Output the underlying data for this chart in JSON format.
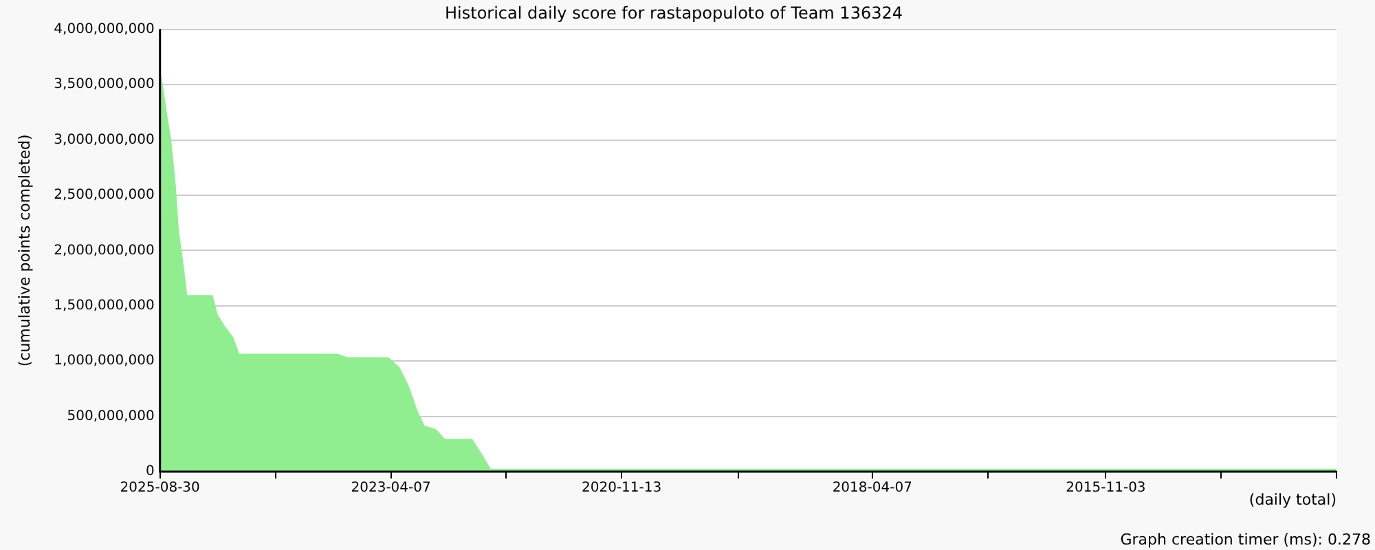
{
  "chart_data": {
    "type": "area",
    "title": "Historical daily score for rastapopuloto of Team 136324",
    "xlabel": "(daily total)",
    "ylabel": "(cumulative points completed)",
    "annotations": [
      "Graph creation timer (ms): 0.278"
    ],
    "x": [
      "2025-08-30",
      "2025-08-25",
      "2025-08-04",
      "2025-07-21",
      "2025-07-04",
      "2025-06-22",
      "2025-06-04",
      "2025-05-21",
      "2025-02-13",
      "2025-01-26",
      "2024-12-31",
      "2024-11-27",
      "2024-11-04",
      "2023-10-27",
      "2023-09-22",
      "2023-04-19",
      "2023-03-07",
      "2023-01-31",
      "2022-12-28",
      "2022-12-02",
      "2022-10-20",
      "2022-09-15",
      "2022-06-04",
      "2022-04-30",
      "2022-03-26",
      "2022-03-20",
      "2013-06-11"
    ],
    "series": [
      {
        "color": "#90ee90",
        "values": [
          3600000000,
          3550000000,
          3210000000,
          3000000000,
          2600000000,
          2180000000,
          1870000000,
          1590000000,
          1590000000,
          1420000000,
          1320000000,
          1210000000,
          1060000000,
          1060000000,
          1030000000,
          1030000000,
          940000000,
          770000000,
          540000000,
          410000000,
          380000000,
          290000000,
          290000000,
          160000000,
          20000000,
          20000000,
          20000000
        ]
      }
    ],
    "xlim": [
      "2025-08-30",
      "2013-06-11"
    ],
    "xticks": [
      {
        "value": "2025-08-30",
        "label": "2025-08-30"
      },
      {
        "value": "2024-06-18",
        "label": null
      },
      {
        "value": "2023-04-07",
        "label": "2023-04-07"
      },
      {
        "value": "2022-01-25",
        "label": null
      },
      {
        "value": "2020-11-13",
        "label": "2020-11-13"
      },
      {
        "value": "2019-08-27",
        "label": null
      },
      {
        "value": "2018-04-07",
        "label": "2018-04-07"
      },
      {
        "value": "2017-01-24",
        "label": null
      },
      {
        "value": "2015-11-03",
        "label": "2015-11-03"
      },
      {
        "value": "2014-08-22",
        "label": null
      },
      {
        "value": "2013-06-11",
        "label": null
      }
    ],
    "ylim": [
      0,
      4000000000
    ],
    "yticks": [
      0,
      {
        "value": 500000000,
        "label": "500,000,000"
      },
      {
        "value": 1000000000,
        "label": "1,000,000,000"
      },
      {
        "value": 1500000000,
        "label": "1,500,000,000"
      },
      {
        "value": 2000000000,
        "label": "2,000,000,000"
      },
      {
        "value": 2500000000,
        "label": "2,500,000,000"
      },
      {
        "value": 3000000000,
        "label": "3,000,000,000"
      },
      {
        "value": 3500000000,
        "label": "3,500,000,000"
      },
      {
        "value": 4000000000,
        "label": "4,000,000,000"
      }
    ],
    "grid": "y"
  }
}
